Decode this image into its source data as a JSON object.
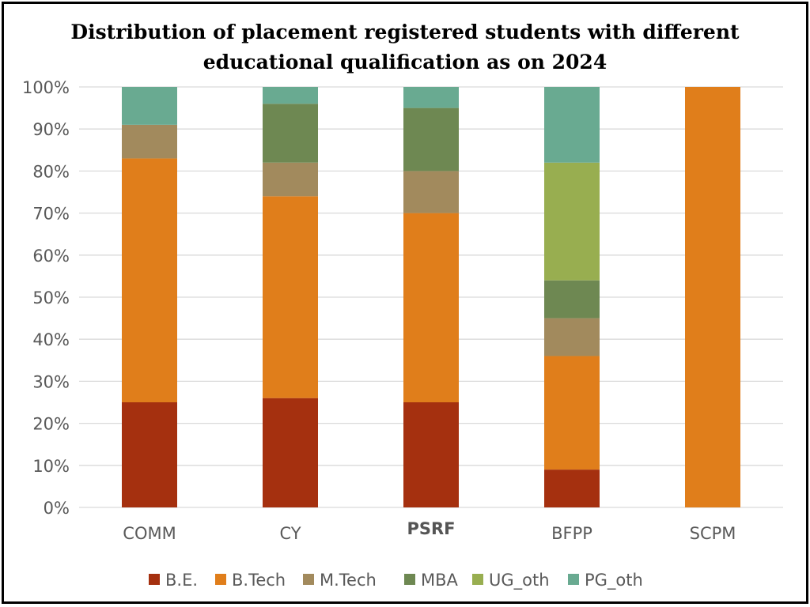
{
  "chart_data": {
    "type": "bar",
    "stacked": true,
    "percent": true,
    "title_lines": [
      "Distribution of placement registered students with different",
      "educational qualification as on 2024"
    ],
    "categories": [
      "COMM",
      "CY",
      "PSRF",
      "BFPP",
      "SCPM"
    ],
    "series": [
      {
        "name": "B.E.",
        "color": "#a5300f",
        "values": [
          25,
          26,
          25,
          9,
          0
        ]
      },
      {
        "name": "B.Tech",
        "color": "#e07e1b",
        "values": [
          58,
          48,
          45,
          27,
          100
        ]
      },
      {
        "name": "M.Tech",
        "color": "#a28a5d",
        "values": [
          8,
          8,
          10,
          9,
          0
        ]
      },
      {
        "name": "MBA",
        "color": "#6e8852",
        "values": [
          0,
          14,
          15,
          9,
          0
        ]
      },
      {
        "name": "UG_oth",
        "color": "#98ae50",
        "values": [
          0,
          0,
          0,
          28,
          0
        ]
      },
      {
        "name": "PG_oth",
        "color": "#69aa91",
        "values": [
          9,
          4,
          5,
          18,
          0
        ]
      }
    ],
    "ylim": [
      0,
      100
    ],
    "yticks": [
      "0%",
      "10%",
      "20%",
      "30%",
      "40%",
      "50%",
      "60%",
      "70%",
      "80%",
      "90%",
      "100%"
    ],
    "grid": true,
    "legend_position": "bottom"
  }
}
